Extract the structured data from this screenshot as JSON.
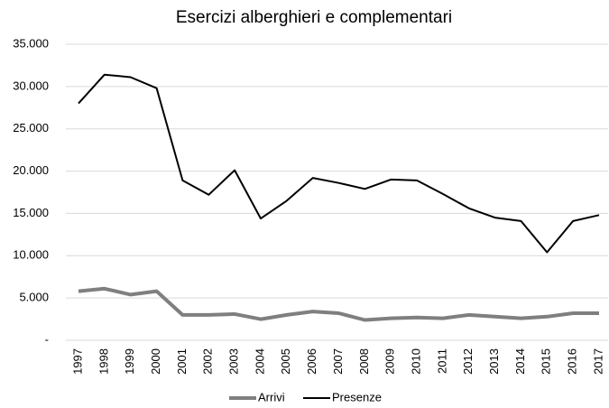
{
  "chart_data": {
    "type": "line",
    "title": "Esercizi alberghieri e complementari",
    "categories": [
      "1997",
      "1998",
      "1999",
      "2000",
      "2001",
      "2002",
      "2003",
      "2004",
      "2005",
      "2006",
      "2007",
      "2008",
      "2009",
      "2010",
      "2011",
      "2012",
      "2013",
      "2014",
      "2015",
      "2016",
      "2017"
    ],
    "series": [
      {
        "name": "Arrivi",
        "color": "#7f7f7f",
        "values": [
          5800,
          6100,
          5400,
          5800,
          3000,
          3000,
          3100,
          2500,
          3000,
          3400,
          3200,
          2400,
          2600,
          2700,
          2600,
          3000,
          2800,
          2600,
          2800,
          3200,
          3200
        ]
      },
      {
        "name": "Presenze",
        "color": "#000000",
        "values": [
          28000,
          31400,
          31100,
          29800,
          18900,
          17200,
          20100,
          14400,
          16500,
          19200,
          18600,
          17900,
          19000,
          18900,
          17300,
          15600,
          14500,
          14100,
          10400,
          14100,
          14800
        ]
      }
    ],
    "ylim": [
      0,
      35000
    ],
    "yticks": [
      {
        "value": 0,
        "label": "-"
      },
      {
        "value": 5000,
        "label": "5.000"
      },
      {
        "value": 10000,
        "label": "10.000"
      },
      {
        "value": 15000,
        "label": "15.000"
      },
      {
        "value": 20000,
        "label": "20.000"
      },
      {
        "value": 25000,
        "label": "25.000"
      },
      {
        "value": 30000,
        "label": "30.000"
      },
      {
        "value": 35000,
        "label": "35.000"
      }
    ],
    "grid": true,
    "legend": "bottom"
  }
}
